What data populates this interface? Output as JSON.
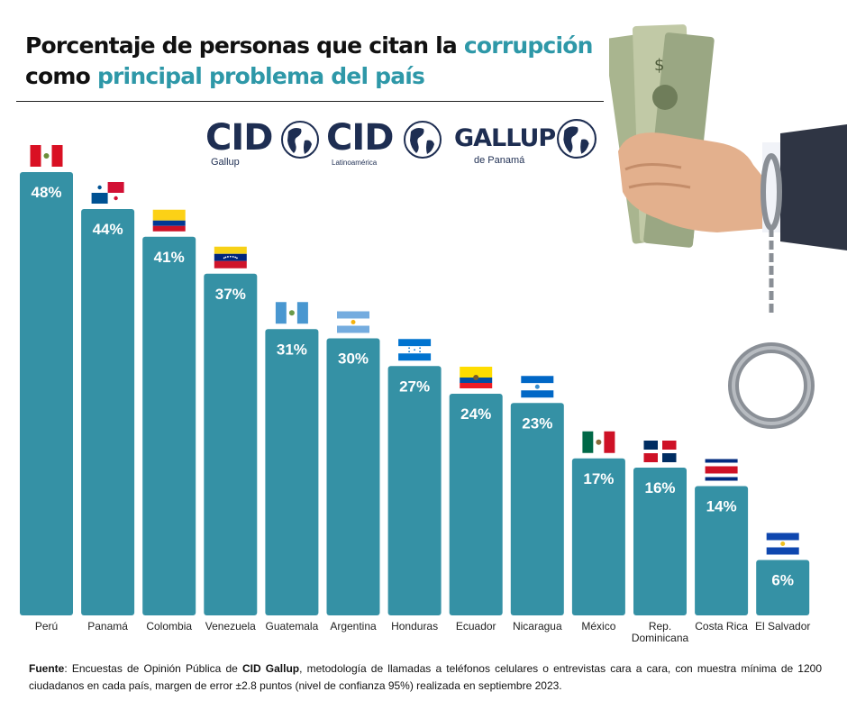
{
  "header": {
    "title_part1": "Porcentaje de personas que citan la ",
    "title_accent1": "corrupción",
    "title_part2": "como ",
    "title_accent2": "principal problema del país"
  },
  "logos": [
    {
      "word": "CID",
      "sub": "Gallup"
    },
    {
      "word": "CID",
      "sub": "Latinoamérica"
    },
    {
      "word": "GALLUP",
      "sub": "de Panamá"
    }
  ],
  "colors": {
    "bar": "#3591a5",
    "accent": "#2e98a8",
    "logo": "#1e2e52"
  },
  "chart_data": {
    "type": "bar",
    "categories": [
      "Perú",
      "Panamá",
      "Colombia",
      "Venezuela",
      "Guatemala",
      "Argentina",
      "Honduras",
      "Ecuador",
      "Nicaragua",
      "México",
      "Rep. Dominicana",
      "Costa Rica",
      "El Salvador"
    ],
    "category_lines": [
      [
        "Perú"
      ],
      [
        "Panamá"
      ],
      [
        "Colombia"
      ],
      [
        "Venezuela"
      ],
      [
        "Guatemala"
      ],
      [
        "Argentina"
      ],
      [
        "Honduras"
      ],
      [
        "Ecuador"
      ],
      [
        "Nicaragua"
      ],
      [
        "México"
      ],
      [
        "Rep.",
        "Dominicana"
      ],
      [
        "Costa Rica"
      ],
      [
        "El Salvador"
      ]
    ],
    "values": [
      48,
      44,
      41,
      37,
      31,
      30,
      27,
      24,
      23,
      17,
      16,
      14,
      6
    ],
    "value_labels": [
      "48%",
      "44%",
      "41%",
      "37%",
      "31%",
      "30%",
      "27%",
      "24%",
      "23%",
      "17%",
      "16%",
      "14%",
      "6%"
    ],
    "flags": [
      "peru-flag",
      "panama-flag",
      "colombia-flag",
      "venezuela-flag",
      "guatemala-flag",
      "argentina-flag",
      "honduras-flag",
      "ecuador-flag",
      "nicaragua-flag",
      "mexico-flag",
      "dominican-republic-flag",
      "costa-rica-flag",
      "el-salvador-flag"
    ],
    "ylim": [
      0,
      48
    ],
    "grid": false,
    "legend": "none"
  },
  "source": {
    "label": "Fuente",
    "text1": ": Encuestas de Opinión Pública de ",
    "brand": "CID Gallup",
    "text2": ", metodología de llamadas a teléfonos celulares o entrevistas cara a cara, con muestra mínima de 1200 ciudadanos en cada país, margen de error ±2.8 puntos (nivel de confianza 95%) realizada en septiembre 2023."
  },
  "illustration": {
    "icons": [
      "money-icon",
      "hand-icon",
      "handcuffs-icon"
    ]
  }
}
